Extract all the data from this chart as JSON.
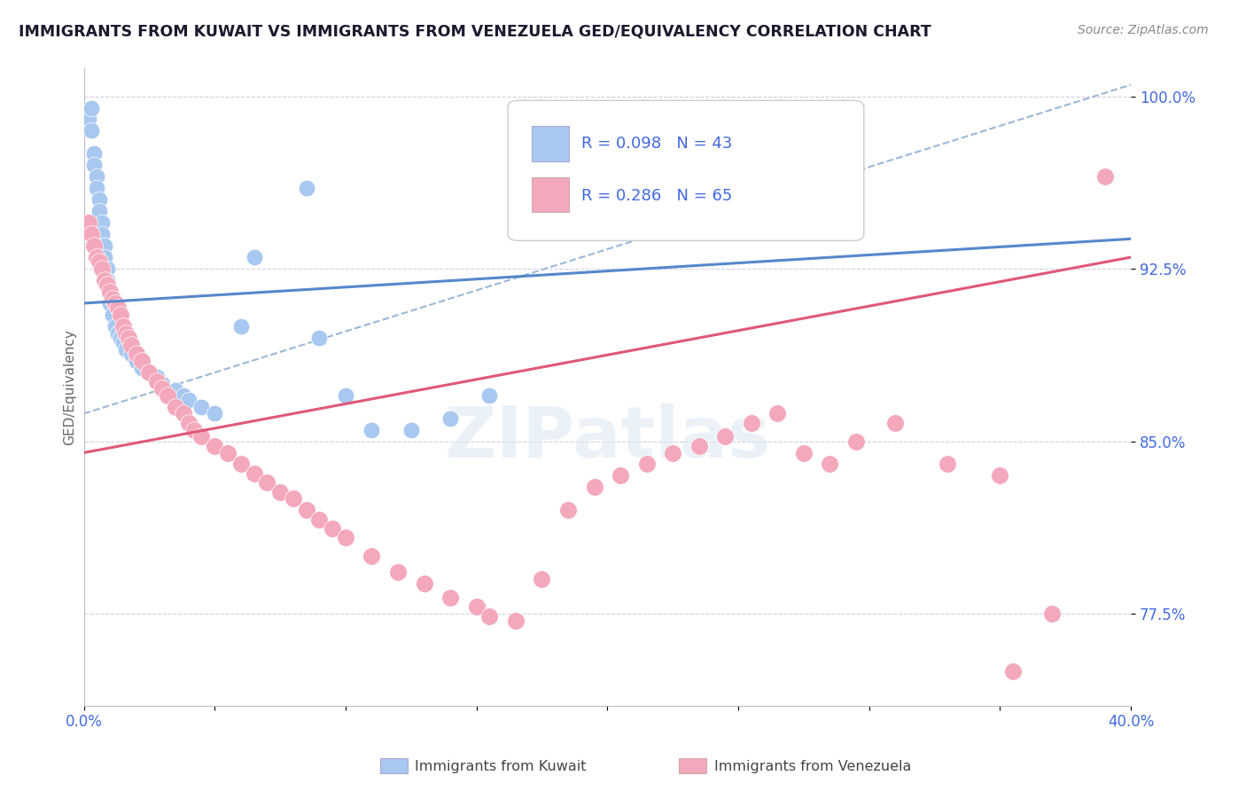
{
  "title": "IMMIGRANTS FROM KUWAIT VS IMMIGRANTS FROM VENEZUELA GED/EQUIVALENCY CORRELATION CHART",
  "source": "Source: ZipAtlas.com",
  "ylabel": "GED/Equivalency",
  "xlim": [
    0.0,
    0.4
  ],
  "ylim": [
    0.735,
    1.012
  ],
  "yticks": [
    0.775,
    0.85,
    0.925,
    1.0
  ],
  "yticklabels": [
    "77.5%",
    "85.0%",
    "92.5%",
    "100.0%"
  ],
  "axis_color": "#4169e1",
  "grid_color": "#d0d0de",
  "kuwait_color": "#a8c8f0",
  "venezuela_color": "#f4a8bc",
  "kuwait_line_color": "#5588cc",
  "venezuela_line_color": "#e05878",
  "dashed_line_color": "#99b8d8",
  "title_color": "#1a1a2e",
  "kuwait_x": [
    0.002,
    0.003,
    0.003,
    0.004,
    0.004,
    0.005,
    0.005,
    0.006,
    0.006,
    0.007,
    0.007,
    0.008,
    0.008,
    0.009,
    0.009,
    0.01,
    0.01,
    0.011,
    0.012,
    0.013,
    0.014,
    0.015,
    0.016,
    0.018,
    0.02,
    0.022,
    0.025,
    0.028,
    0.03,
    0.035,
    0.038,
    0.04,
    0.045,
    0.05,
    0.06,
    0.065,
    0.085,
    0.09,
    0.1,
    0.11,
    0.125,
    0.14,
    0.155
  ],
  "kuwait_y": [
    0.99,
    0.995,
    0.985,
    0.975,
    0.97,
    0.965,
    0.96,
    0.955,
    0.95,
    0.945,
    0.94,
    0.935,
    0.93,
    0.925,
    0.92,
    0.915,
    0.91,
    0.905,
    0.9,
    0.897,
    0.895,
    0.893,
    0.89,
    0.888,
    0.885,
    0.882,
    0.88,
    0.878,
    0.875,
    0.872,
    0.87,
    0.868,
    0.865,
    0.862,
    0.9,
    0.93,
    0.96,
    0.895,
    0.87,
    0.855,
    0.855,
    0.86,
    0.87
  ],
  "venezuela_x": [
    0.002,
    0.003,
    0.004,
    0.005,
    0.006,
    0.007,
    0.008,
    0.009,
    0.01,
    0.011,
    0.012,
    0.013,
    0.014,
    0.015,
    0.016,
    0.017,
    0.018,
    0.02,
    0.022,
    0.025,
    0.028,
    0.03,
    0.032,
    0.035,
    0.038,
    0.04,
    0.042,
    0.045,
    0.05,
    0.055,
    0.06,
    0.065,
    0.07,
    0.075,
    0.08,
    0.085,
    0.09,
    0.095,
    0.1,
    0.11,
    0.12,
    0.13,
    0.14,
    0.15,
    0.155,
    0.165,
    0.175,
    0.185,
    0.195,
    0.205,
    0.215,
    0.225,
    0.235,
    0.245,
    0.255,
    0.265,
    0.275,
    0.285,
    0.295,
    0.31,
    0.33,
    0.35,
    0.37,
    0.39,
    0.355
  ],
  "venezuela_y": [
    0.945,
    0.94,
    0.935,
    0.93,
    0.928,
    0.925,
    0.92,
    0.918,
    0.915,
    0.912,
    0.91,
    0.908,
    0.905,
    0.9,
    0.897,
    0.895,
    0.892,
    0.888,
    0.885,
    0.88,
    0.876,
    0.873,
    0.87,
    0.865,
    0.862,
    0.858,
    0.855,
    0.852,
    0.848,
    0.845,
    0.84,
    0.836,
    0.832,
    0.828,
    0.825,
    0.82,
    0.816,
    0.812,
    0.808,
    0.8,
    0.793,
    0.788,
    0.782,
    0.778,
    0.774,
    0.772,
    0.79,
    0.82,
    0.83,
    0.835,
    0.84,
    0.845,
    0.848,
    0.852,
    0.858,
    0.862,
    0.845,
    0.84,
    0.85,
    0.858,
    0.84,
    0.835,
    0.775,
    0.965,
    0.75
  ],
  "kuwait_line_x0": 0.0,
  "kuwait_line_y0": 0.91,
  "kuwait_line_x1": 0.4,
  "kuwait_line_y1": 0.938,
  "venezuela_line_x0": 0.0,
  "venezuela_line_y0": 0.845,
  "venezuela_line_x1": 0.4,
  "venezuela_line_y1": 0.93,
  "dash_line_x0": 0.0,
  "dash_line_y0": 0.862,
  "dash_line_x1": 0.4,
  "dash_line_y1": 1.005
}
